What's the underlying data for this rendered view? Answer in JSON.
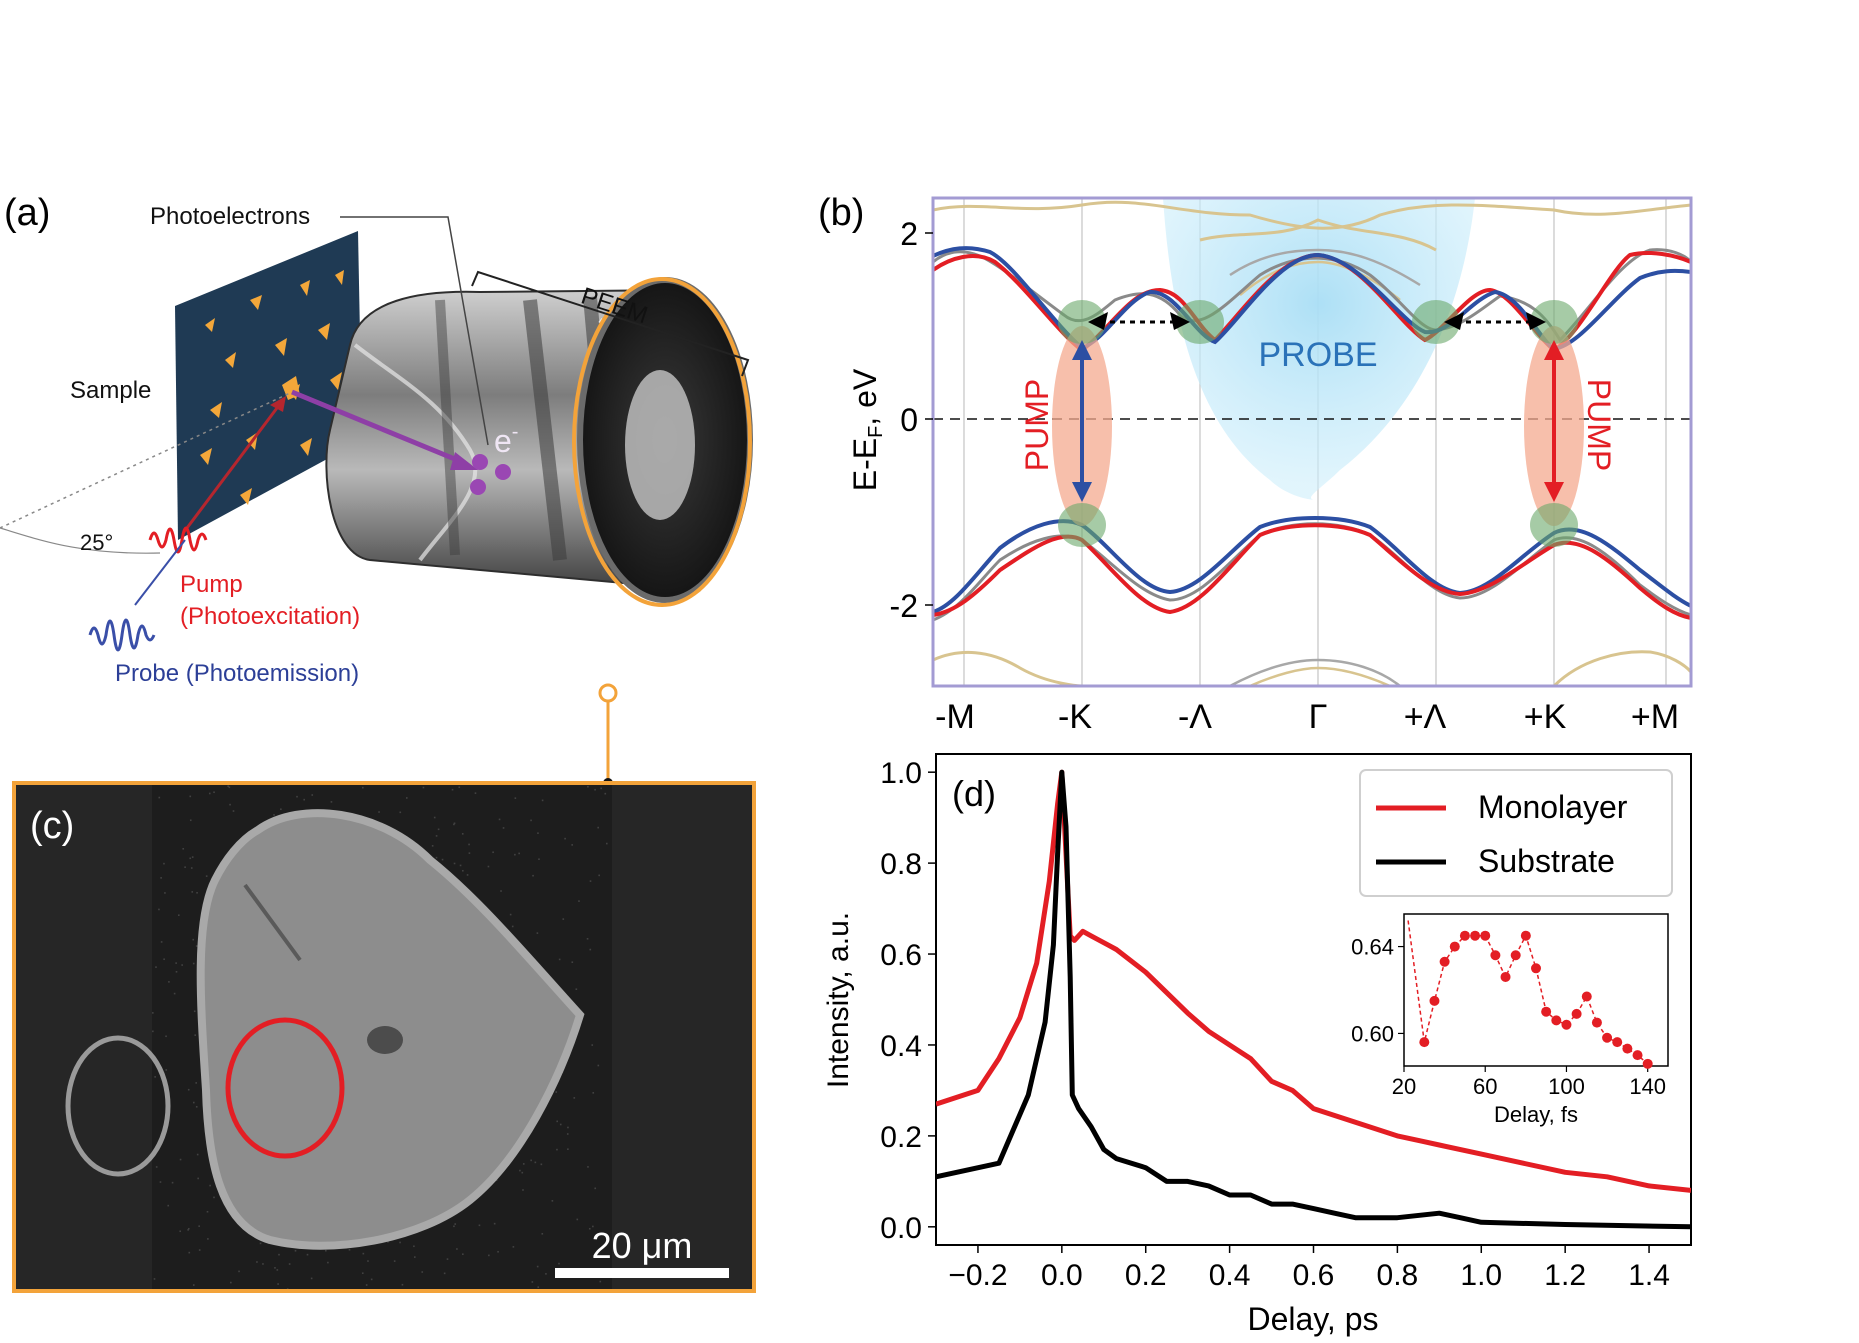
{
  "panel_a": {
    "label": "(a)",
    "photoelectrons": "Photoelectrons",
    "peem": "PEEM",
    "sample": "Sample",
    "electron": "e",
    "electron_sup": "-",
    "angle": "25°",
    "pump": "Pump",
    "pump_sub": "(Photoexcitation)",
    "probe": "Probe (Photoemission)"
  },
  "panel_b": {
    "label": "(b)",
    "ylabel_main": "E-E",
    "ylabel_sub": "F",
    "ylabel_tail": ", eV",
    "yticks": [
      "2",
      "0",
      "-2"
    ],
    "xticks": [
      "-M",
      "-K",
      "-Λ",
      "Γ",
      "+Λ",
      "+K",
      "+M"
    ],
    "probe_label": "PROBE",
    "pump_label": "PUMP",
    "colors": {
      "frame": "#a39bd3",
      "red": "#e31e24",
      "blue": "#2c4fa3",
      "gray": "#8a8a8a",
      "tan": "#d8c48f",
      "probe_fill": "#9fd9f2",
      "pump_fill": "#f4a98f",
      "valley": "#6aa86a"
    }
  },
  "panel_c": {
    "label": "(c)",
    "scalebar": "20 μm",
    "colors": {
      "frame": "#f3a33a",
      "monolayer_roi": "#e31e24",
      "substrate_roi": "#9a9a9a"
    }
  },
  "chart_data": {
    "type": "line",
    "label": "(d)",
    "xlabel": "Delay, ps",
    "ylabel": "Intensity, a.u.",
    "xlim": [
      -0.3,
      1.5
    ],
    "ylim": [
      -0.04,
      1.04
    ],
    "xticks": [
      "−0.2",
      "0.0",
      "0.2",
      "0.4",
      "0.6",
      "0.8",
      "1.0",
      "1.2",
      "1.4"
    ],
    "yticks": [
      "0.0",
      "0.2",
      "0.4",
      "0.6",
      "0.8",
      "1.0"
    ],
    "legend": [
      "Monolayer",
      "Substrate"
    ],
    "legend_position": "top-right",
    "series": [
      {
        "name": "Monolayer",
        "color": "#e31e24",
        "x": [
          -0.3,
          -0.2,
          -0.15,
          -0.1,
          -0.06,
          -0.03,
          -0.01,
          0.0,
          0.01,
          0.02,
          0.03,
          0.05,
          0.07,
          0.09,
          0.11,
          0.13,
          0.2,
          0.3,
          0.35,
          0.45,
          0.5,
          0.55,
          0.6,
          0.7,
          0.8,
          0.85,
          0.9,
          1.0,
          1.1,
          1.2,
          1.3,
          1.4,
          1.5
        ],
        "y": [
          0.27,
          0.3,
          0.37,
          0.46,
          0.58,
          0.76,
          0.93,
          1.0,
          0.82,
          0.64,
          0.63,
          0.65,
          0.64,
          0.63,
          0.62,
          0.61,
          0.56,
          0.47,
          0.43,
          0.37,
          0.32,
          0.3,
          0.26,
          0.23,
          0.2,
          0.19,
          0.18,
          0.16,
          0.14,
          0.12,
          0.11,
          0.09,
          0.08
        ]
      },
      {
        "name": "Substrate",
        "color": "#000000",
        "x": [
          -0.3,
          -0.15,
          -0.08,
          -0.04,
          -0.02,
          -0.01,
          0.0,
          0.01,
          0.02,
          0.025,
          0.04,
          0.07,
          0.1,
          0.13,
          0.2,
          0.25,
          0.3,
          0.35,
          0.4,
          0.45,
          0.5,
          0.55,
          0.6,
          0.65,
          0.7,
          0.8,
          0.9,
          0.95,
          1.0,
          1.2,
          1.5
        ],
        "y": [
          0.11,
          0.14,
          0.29,
          0.45,
          0.62,
          0.82,
          1.0,
          0.88,
          0.55,
          0.29,
          0.26,
          0.22,
          0.17,
          0.15,
          0.13,
          0.1,
          0.1,
          0.09,
          0.07,
          0.07,
          0.05,
          0.05,
          0.04,
          0.03,
          0.02,
          0.02,
          0.03,
          0.02,
          0.01,
          0.005,
          0.0
        ]
      }
    ],
    "inset": {
      "xlabel": "Delay, fs",
      "xlim": [
        20,
        150
      ],
      "ylim": [
        0.585,
        0.655
      ],
      "xticks": [
        "20",
        "60",
        "100",
        "140"
      ],
      "yticks": [
        "0.64",
        "0.60"
      ],
      "color": "#e31e24",
      "x": [
        22,
        30,
        35,
        40,
        45,
        50,
        55,
        60,
        65,
        70,
        75,
        80,
        85,
        90,
        95,
        100,
        105,
        110,
        115,
        120,
        125,
        130,
        135,
        140
      ],
      "y": [
        0.652,
        0.596,
        0.615,
        0.633,
        0.64,
        0.645,
        0.645,
        0.645,
        0.636,
        0.626,
        0.636,
        0.645,
        0.63,
        0.61,
        0.606,
        0.604,
        0.609,
        0.617,
        0.605,
        0.598,
        0.596,
        0.593,
        0.59,
        0.586
      ]
    }
  }
}
